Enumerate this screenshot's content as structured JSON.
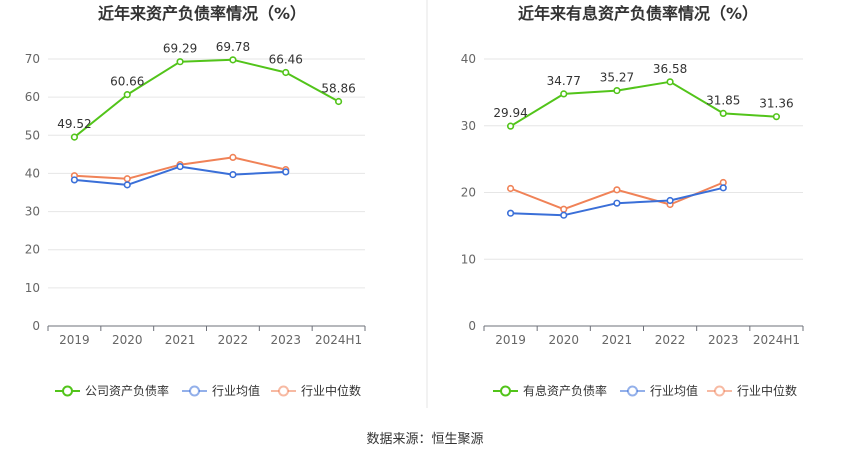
{
  "source_text": "数据来源：恒生聚源",
  "chart_data": [
    {
      "type": "line",
      "title": "近年来资产负债率情况（%）",
      "categories": [
        "2019",
        "2020",
        "2021",
        "2022",
        "2023",
        "2024H1"
      ],
      "ylim": [
        0,
        70
      ],
      "yticks": [
        0,
        10,
        20,
        30,
        40,
        50,
        60,
        70
      ],
      "grid": true,
      "legend_position": "bottom",
      "series": [
        {
          "name": "公司资产负债率",
          "color": "#52c41a",
          "labeled": true,
          "values": [
            49.52,
            60.66,
            69.29,
            69.78,
            66.46,
            58.86
          ]
        },
        {
          "name": "行业均值",
          "color": "#3a6fd8",
          "labeled": false,
          "values": [
            38.3,
            37.0,
            41.8,
            39.7,
            40.4,
            null
          ]
        },
        {
          "name": "行业中位数",
          "color": "#f08257",
          "labeled": false,
          "values": [
            39.4,
            38.6,
            42.3,
            44.2,
            41.0,
            null
          ]
        }
      ]
    },
    {
      "type": "line",
      "title": "近年来有息资产负债率情况（%）",
      "categories": [
        "2019",
        "2020",
        "2021",
        "2022",
        "2023",
        "2024H1"
      ],
      "ylim": [
        0,
        40
      ],
      "yticks": [
        0,
        10,
        20,
        30,
        40
      ],
      "grid": true,
      "legend_position": "bottom",
      "series": [
        {
          "name": "有息资产负债率",
          "color": "#52c41a",
          "labeled": true,
          "values": [
            29.94,
            34.77,
            35.27,
            36.58,
            31.85,
            31.36
          ]
        },
        {
          "name": "行业均值",
          "color": "#3a6fd8",
          "labeled": false,
          "values": [
            16.9,
            16.6,
            18.4,
            18.8,
            20.7,
            null
          ]
        },
        {
          "name": "行业中位数",
          "color": "#f08257",
          "labeled": false,
          "values": [
            20.6,
            17.5,
            20.4,
            18.2,
            21.5,
            null
          ]
        }
      ]
    }
  ]
}
